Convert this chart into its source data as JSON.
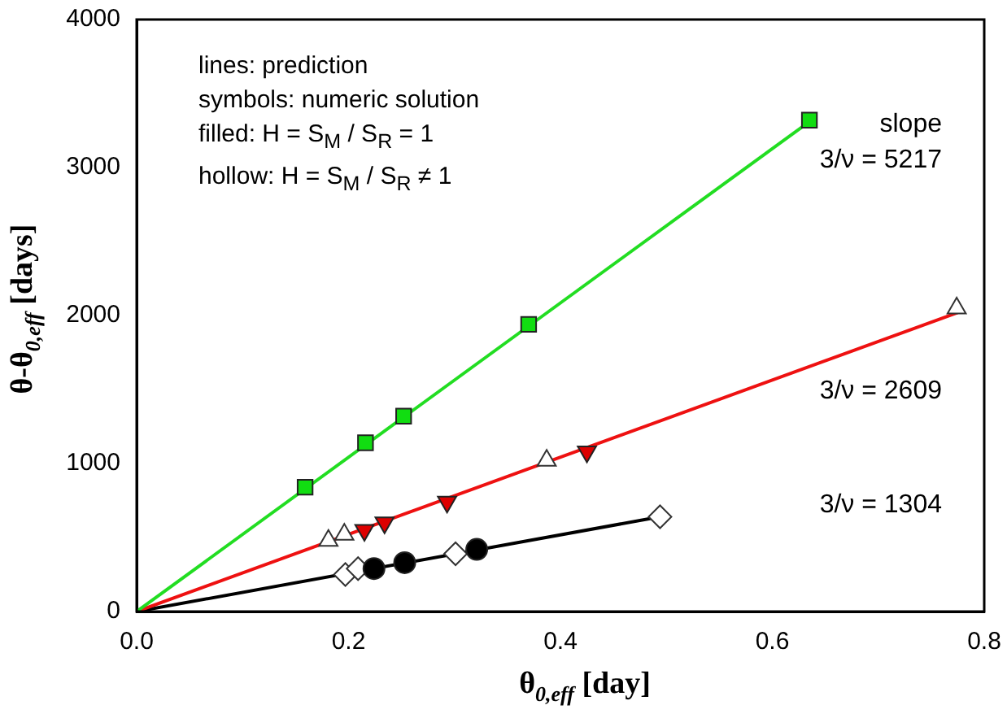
{
  "chart_data": {
    "type": "scatter",
    "xlabel": "θ$_{0,eff}$ [day]",
    "ylabel": "θ-θ$_{0,eff}$ [days]",
    "xlim": [
      0,
      0.8
    ],
    "ylim": [
      0,
      4000
    ],
    "xticks": [
      {
        "value": 0,
        "label": "0.0"
      },
      {
        "value": 0.2,
        "label": "0.2"
      },
      {
        "value": 0.4,
        "label": "0.4"
      },
      {
        "value": 0.6,
        "label": "0.6"
      },
      {
        "value": 0.8,
        "label": "0.8"
      }
    ],
    "yticks": [
      0,
      1000,
      2000,
      3000,
      4000
    ],
    "grid": false,
    "legend": false,
    "annotations": [
      "lines: prediction",
      "symbols: numeric solution",
      "filled:   H = S$_{M}$ / S$_{R}$ = 1",
      "hollow:   H = S$_{M}$ / S$_{R}$ ≠ 1",
      "slope",
      "3/ν = 5217",
      "3/ν = 2609",
      "3/ν = 1304"
    ],
    "series": [
      {
        "type": "line",
        "marker": "none",
        "color": "#22dd22",
        "x": [
          0,
          0.635
        ],
        "values": [
          0,
          3310
        ]
      },
      {
        "type": "line",
        "marker": "none",
        "color": "#ee1111",
        "x": [
          0,
          0.775
        ],
        "values": [
          0,
          2020
        ]
      },
      {
        "type": "line",
        "marker": "none",
        "color": "#000000",
        "x": [
          0,
          0.494
        ],
        "values": [
          0,
          640
        ]
      },
      {
        "type": "scatter",
        "marker": "square",
        "color": "#11dd11",
        "x": [
          0.159,
          0.216,
          0.252,
          0.37,
          0.635
        ],
        "values": [
          840,
          1140,
          1320,
          1940,
          3320
        ]
      },
      {
        "type": "scatter",
        "marker": "triangle",
        "color": "#dd0000",
        "x": [
          0.215,
          0.234,
          0.293,
          0.425
        ],
        "values": [
          550,
          600,
          740,
          1080
        ]
      },
      {
        "type": "scatter",
        "marker": "triangle",
        "color": "#ffffff",
        "x": [
          0.181,
          0.196,
          0.387,
          0.774
        ],
        "values": [
          480,
          520,
          1020,
          2050
        ]
      },
      {
        "type": "scatter",
        "marker": "circle",
        "color": "#000000",
        "x": [
          0.224,
          0.253,
          0.321
        ],
        "values": [
          290,
          330,
          420
        ]
      },
      {
        "type": "scatter",
        "marker": "diamond",
        "color": "#ffffff",
        "x": [
          0.197,
          0.209,
          0.301,
          0.494
        ],
        "values": [
          250,
          290,
          390,
          640
        ]
      }
    ]
  }
}
